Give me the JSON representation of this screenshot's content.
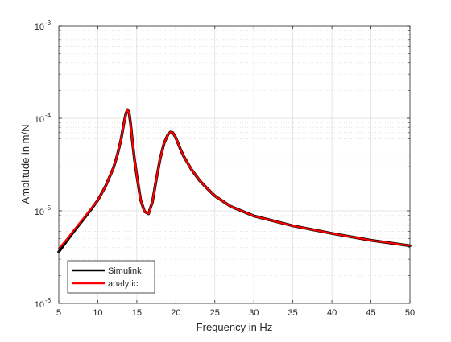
{
  "chart_data": {
    "type": "line",
    "title": "",
    "xlabel": "Frequency in Hz",
    "ylabel": "Amplitude in m/N",
    "x_scale": "linear",
    "y_scale": "log",
    "xlim": [
      5,
      50
    ],
    "ylim": [
      1e-06,
      0.001
    ],
    "x_ticks": [
      5,
      10,
      15,
      20,
      25,
      30,
      35,
      40,
      45,
      50
    ],
    "y_ticks": [
      {
        "value": 1e-06,
        "base": "10",
        "exp": "-6"
      },
      {
        "value": 1e-05,
        "base": "10",
        "exp": "-5"
      },
      {
        "value": 0.0001,
        "base": "10",
        "exp": "-4"
      },
      {
        "value": 0.001,
        "base": "10",
        "exp": "-3"
      }
    ],
    "grid": true,
    "minor_grid": true,
    "legend_position": "bottom-left",
    "series": [
      {
        "name": "Simulink",
        "color": "#000000",
        "x": [
          5,
          6,
          7,
          8,
          9,
          10,
          11,
          12,
          12.5,
          13,
          13.3,
          13.6,
          13.8,
          14,
          14.2,
          14.4,
          14.7,
          15,
          15.5,
          16,
          16.5,
          17,
          17.5,
          18,
          18.5,
          19,
          19.3,
          19.6,
          19.9,
          20.2,
          20.6,
          21,
          22,
          23,
          24,
          25,
          27,
          30,
          35,
          40,
          45,
          50
        ],
        "y": [
          3.6e-06,
          4.7e-06,
          6.1e-06,
          7.8e-06,
          1e-05,
          1.3e-05,
          1.85e-05,
          2.9e-05,
          4e-05,
          6e-05,
          8.5e-05,
          0.000112,
          0.000124,
          0.000116,
          8.8e-05,
          6e-05,
          3.6e-05,
          2.4e-05,
          1.3e-05,
          9.8e-06,
          9.3e-06,
          1.25e-05,
          2.2e-05,
          3.7e-05,
          5.4e-05,
          6.7e-05,
          7.1e-05,
          7e-05,
          6.4e-05,
          5.6e-05,
          4.6e-05,
          3.9e-05,
          2.8e-05,
          2.15e-05,
          1.75e-05,
          1.45e-05,
          1.12e-05,
          8.8e-06,
          6.9e-06,
          5.7e-06,
          4.8e-06,
          4.2e-06
        ]
      },
      {
        "name": "analytic",
        "color": "#ff0000",
        "x": [
          5,
          6,
          7,
          8,
          9,
          10,
          11,
          12,
          12.5,
          13,
          13.3,
          13.6,
          13.8,
          14,
          14.2,
          14.4,
          14.7,
          15,
          15.5,
          16,
          16.5,
          17,
          17.5,
          18,
          18.5,
          19,
          19.3,
          19.6,
          19.9,
          20.2,
          20.6,
          21,
          22,
          23,
          24,
          25,
          27,
          30,
          35,
          40,
          45,
          50
        ],
        "y": [
          3.9e-06,
          4.9e-06,
          6.3e-06,
          8e-06,
          1.02e-05,
          1.3e-05,
          1.85e-05,
          2.9e-05,
          4e-05,
          6e-05,
          8.5e-05,
          0.000112,
          0.000124,
          0.000116,
          8.8e-05,
          6e-05,
          3.6e-05,
          2.4e-05,
          1.3e-05,
          9.8e-06,
          9.3e-06,
          1.25e-05,
          2.2e-05,
          3.7e-05,
          5.4e-05,
          6.7e-05,
          7.1e-05,
          7e-05,
          6.4e-05,
          5.6e-05,
          4.6e-05,
          3.9e-05,
          2.8e-05,
          2.15e-05,
          1.75e-05,
          1.45e-05,
          1.12e-05,
          8.8e-06,
          6.9e-06,
          5.7e-06,
          4.8e-06,
          4.2e-06
        ]
      }
    ]
  }
}
